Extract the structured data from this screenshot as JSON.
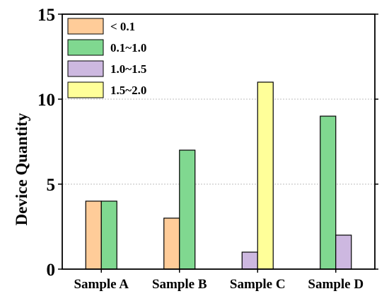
{
  "chart_data": {
    "type": "bar",
    "title": "",
    "xlabel": "",
    "ylabel": "Device Quantity",
    "ylim": [
      0,
      15
    ],
    "yticks": [
      0,
      5,
      10,
      15
    ],
    "grid": true,
    "legend_position": "top-left",
    "categories": [
      "Sample A",
      "Sample B",
      "Sample C",
      "Sample D"
    ],
    "series": [
      {
        "name": "< 0.1",
        "color": "#FFCC99",
        "values": [
          4,
          3,
          0,
          0
        ]
      },
      {
        "name": "0.1~1.0",
        "color": "#80D890",
        "values": [
          4,
          7,
          0,
          9
        ]
      },
      {
        "name": "1.0~1.5",
        "color": "#CDB8E0",
        "values": [
          0,
          0,
          1,
          2
        ]
      },
      {
        "name": "1.5~2.0",
        "color": "#FFFF99",
        "values": [
          0,
          0,
          11,
          0
        ]
      }
    ]
  }
}
